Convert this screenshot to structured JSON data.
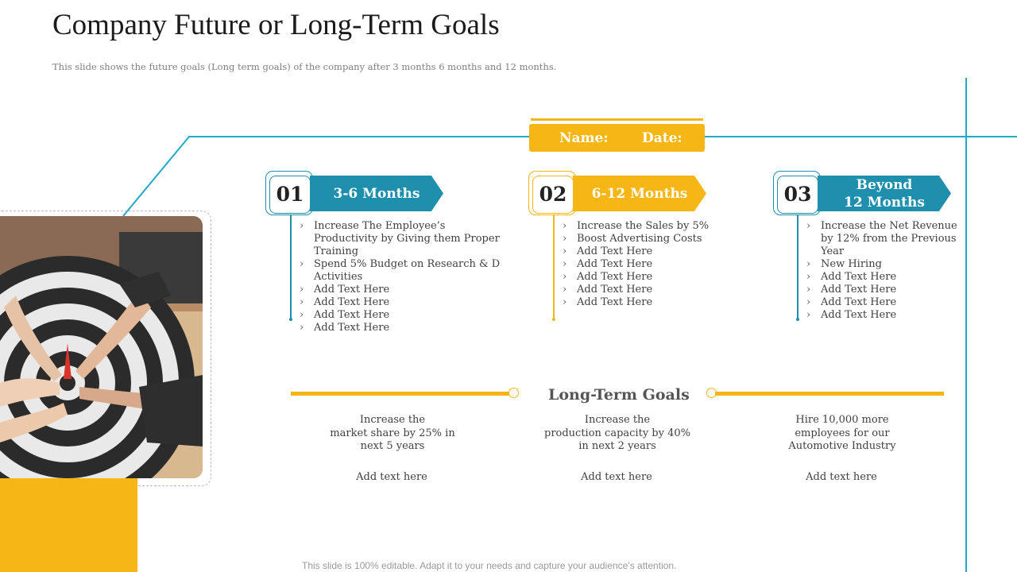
{
  "header": {
    "title": "Company Future or Long-Term Goals",
    "subtitle": "This slide shows the future goals (Long term goals) of the company after 3 months 6 months and 12 months."
  },
  "name_bar": {
    "name_label": "Name:",
    "date_label": "Date:"
  },
  "phases": [
    {
      "number": "01",
      "label": "3-6 Months",
      "items": [
        "Increase The Employee’s Productivity by Giving them Proper Training",
        "Spend 5% Budget on Research & D Activities",
        "Add Text Here",
        "Add Text Here",
        "Add Text Here",
        "Add Text Here"
      ]
    },
    {
      "number": "02",
      "label": "6-12 Months",
      "items": [
        "Increase the Sales by 5%",
        "Boost Advertising Costs",
        "Add Text Here",
        "Add Text Here",
        "Add Text Here",
        "Add Text Here",
        "Add Text Here"
      ]
    },
    {
      "number": "03",
      "label_line1": "Beyond",
      "label_line2": "12 Months",
      "items": [
        "Increase the Net Revenue by 12% from the Previous Year",
        "New Hiring",
        "Add Text Here",
        "Add Text Here",
        "Add Text Here",
        "Add Text Here"
      ]
    }
  ],
  "long_term": {
    "heading": "Long-Term Goals",
    "goals": [
      {
        "line1": "Increase the",
        "line2": "market share by 25% in",
        "line3": "next 5 years",
        "add": "Add text here"
      },
      {
        "line1": "Increase the",
        "line2": "production capacity by 40%",
        "line3": "in next 2 years",
        "add": "Add text here"
      },
      {
        "line1": "Hire 10,000 more",
        "line2": "employees for our",
        "line3": "Automotive Industry",
        "add": "Add text here"
      }
    ]
  },
  "footer": "This slide is 100% editable. Adapt it to your needs and capture your audience’s attention.",
  "colors": {
    "accent_blue": "#1f8fae",
    "accent_yellow": "#f6b716",
    "line_blue": "#21a8c9"
  },
  "image": {
    "description_icon": "dartboard-hands-photo"
  }
}
